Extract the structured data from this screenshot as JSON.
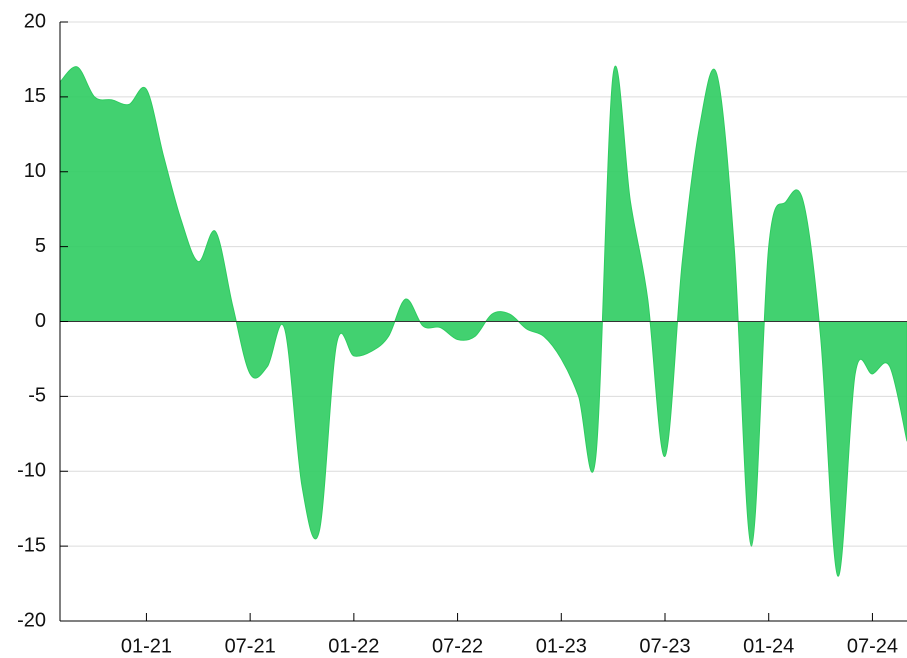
{
  "chart_data": {
    "type": "area",
    "x": [
      "2020-08",
      "2020-09",
      "2020-10",
      "2020-11",
      "2020-12",
      "2021-01",
      "2021-02",
      "2021-03",
      "2021-04",
      "2021-05",
      "2021-06",
      "2021-07",
      "2021-08",
      "2021-09",
      "2021-10",
      "2021-11",
      "2021-12",
      "2022-01",
      "2022-02",
      "2022-03",
      "2022-04",
      "2022-05",
      "2022-06",
      "2022-07",
      "2022-08",
      "2022-09",
      "2022-10",
      "2022-11",
      "2022-12",
      "2023-01",
      "2023-02",
      "2023-03",
      "2023-04",
      "2023-05",
      "2023-06",
      "2023-07",
      "2023-08",
      "2023-09",
      "2023-10",
      "2023-11",
      "2023-12",
      "2024-01",
      "2024-02",
      "2024-03",
      "2024-04",
      "2024-05",
      "2024-06",
      "2024-07",
      "2024-08",
      "2024-09"
    ],
    "values": [
      16,
      17,
      15,
      14.8,
      14.5,
      15.5,
      11,
      6.8,
      4,
      6,
      1,
      -3.5,
      -3,
      -0.5,
      -11,
      -14,
      -1.5,
      -2.3,
      -2,
      -1,
      1.5,
      -0.3,
      -0.4,
      -1.2,
      -1,
      0.5,
      0.5,
      -0.5,
      -1,
      -2.5,
      -5,
      -9,
      16.5,
      8,
      1.5,
      -9,
      4,
      13,
      16.5,
      5,
      -15,
      5,
      8,
      8,
      -1,
      -17,
      -3.5,
      -3.5,
      -3,
      -8
    ],
    "color": "#2ecc60",
    "xlim": [
      "2020-08",
      "2024-09"
    ],
    "xticks": [
      {
        "value": "2021-01",
        "label": "01-21"
      },
      {
        "value": "2021-07",
        "label": "07-21"
      },
      {
        "value": "2022-01",
        "label": "01-22"
      },
      {
        "value": "2022-07",
        "label": "07-22"
      },
      {
        "value": "2023-01",
        "label": "01-23"
      },
      {
        "value": "2023-07",
        "label": "07-23"
      },
      {
        "value": "2024-01",
        "label": "01-24"
      },
      {
        "value": "2024-07",
        "label": "07-24"
      }
    ],
    "ylim": [
      -20,
      20
    ],
    "yticks": [
      -20,
      -15,
      -10,
      -5,
      0,
      5,
      10,
      15,
      20
    ],
    "grid": true
  }
}
